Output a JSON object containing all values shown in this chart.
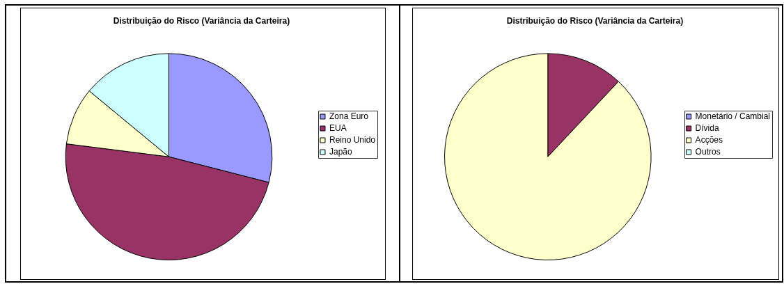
{
  "chart_data": [
    {
      "type": "pie",
      "title": "Distribuição do Risco (Variância da Carteira)",
      "categories": [
        "Zona Euro",
        "EUA",
        "Reino Unido",
        "Japão"
      ],
      "values": [
        29,
        48,
        9,
        14
      ],
      "colors": [
        "#9999ff",
        "#993366",
        "#ffffcc",
        "#ccffff"
      ],
      "legend": "right"
    },
    {
      "type": "pie",
      "title": "Distribuição do Risco (Variância da Carteira)",
      "categories": [
        "Monetário / Cambial",
        "Dívida",
        "Acções",
        "Outros"
      ],
      "values": [
        0,
        12,
        88,
        0
      ],
      "colors": [
        "#9999ff",
        "#993366",
        "#ffffcc",
        "#ccffff"
      ],
      "legend": "right"
    }
  ]
}
